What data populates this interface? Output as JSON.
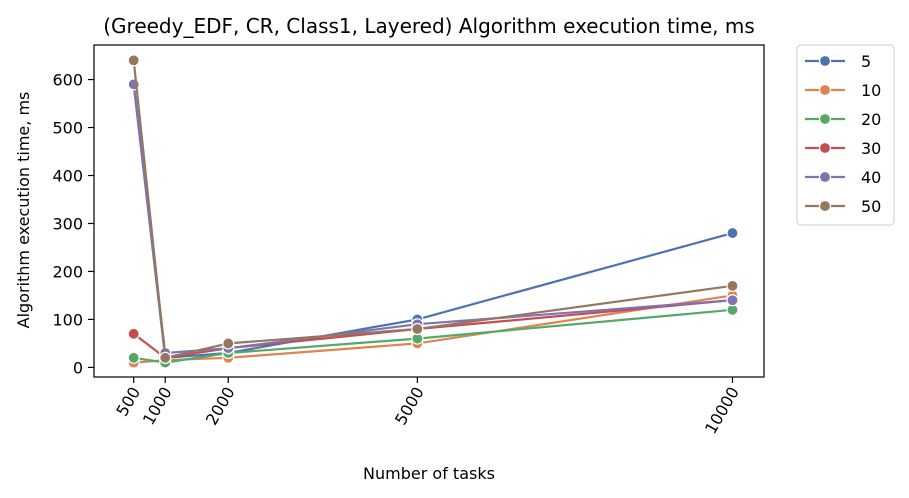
{
  "chart_data": {
    "type": "line",
    "title": "(Greedy_EDF, CR, Class1, Layered) Algorithm execution time, ms",
    "xlabel": "Number of tasks",
    "ylabel": "Algorithm execution time, ms",
    "x": [
      500,
      1000,
      2000,
      5000,
      10000
    ],
    "x_tick_labels": [
      "500",
      "1000",
      "2000",
      "5000",
      "10000"
    ],
    "xlim": [
      -130,
      10500
    ],
    "ylim": [
      -20,
      672
    ],
    "y_ticks": [
      0,
      100,
      200,
      300,
      400,
      500,
      600
    ],
    "grid": false,
    "legend_position": "outside-right-top",
    "series": [
      {
        "name": "5",
        "color": "#4c72b0",
        "values": [
          590,
          20,
          30,
          100,
          280
        ]
      },
      {
        "name": "10",
        "color": "#dd8452",
        "values": [
          10,
          15,
          20,
          50,
          150
        ]
      },
      {
        "name": "20",
        "color": "#55a868",
        "values": [
          20,
          10,
          30,
          60,
          120
        ]
      },
      {
        "name": "30",
        "color": "#c44e52",
        "values": [
          70,
          20,
          40,
          80,
          140
        ]
      },
      {
        "name": "40",
        "color": "#8172b3",
        "values": [
          590,
          30,
          40,
          90,
          140
        ]
      },
      {
        "name": "50",
        "color": "#937860",
        "values": [
          640,
          20,
          50,
          80,
          170
        ]
      }
    ]
  }
}
